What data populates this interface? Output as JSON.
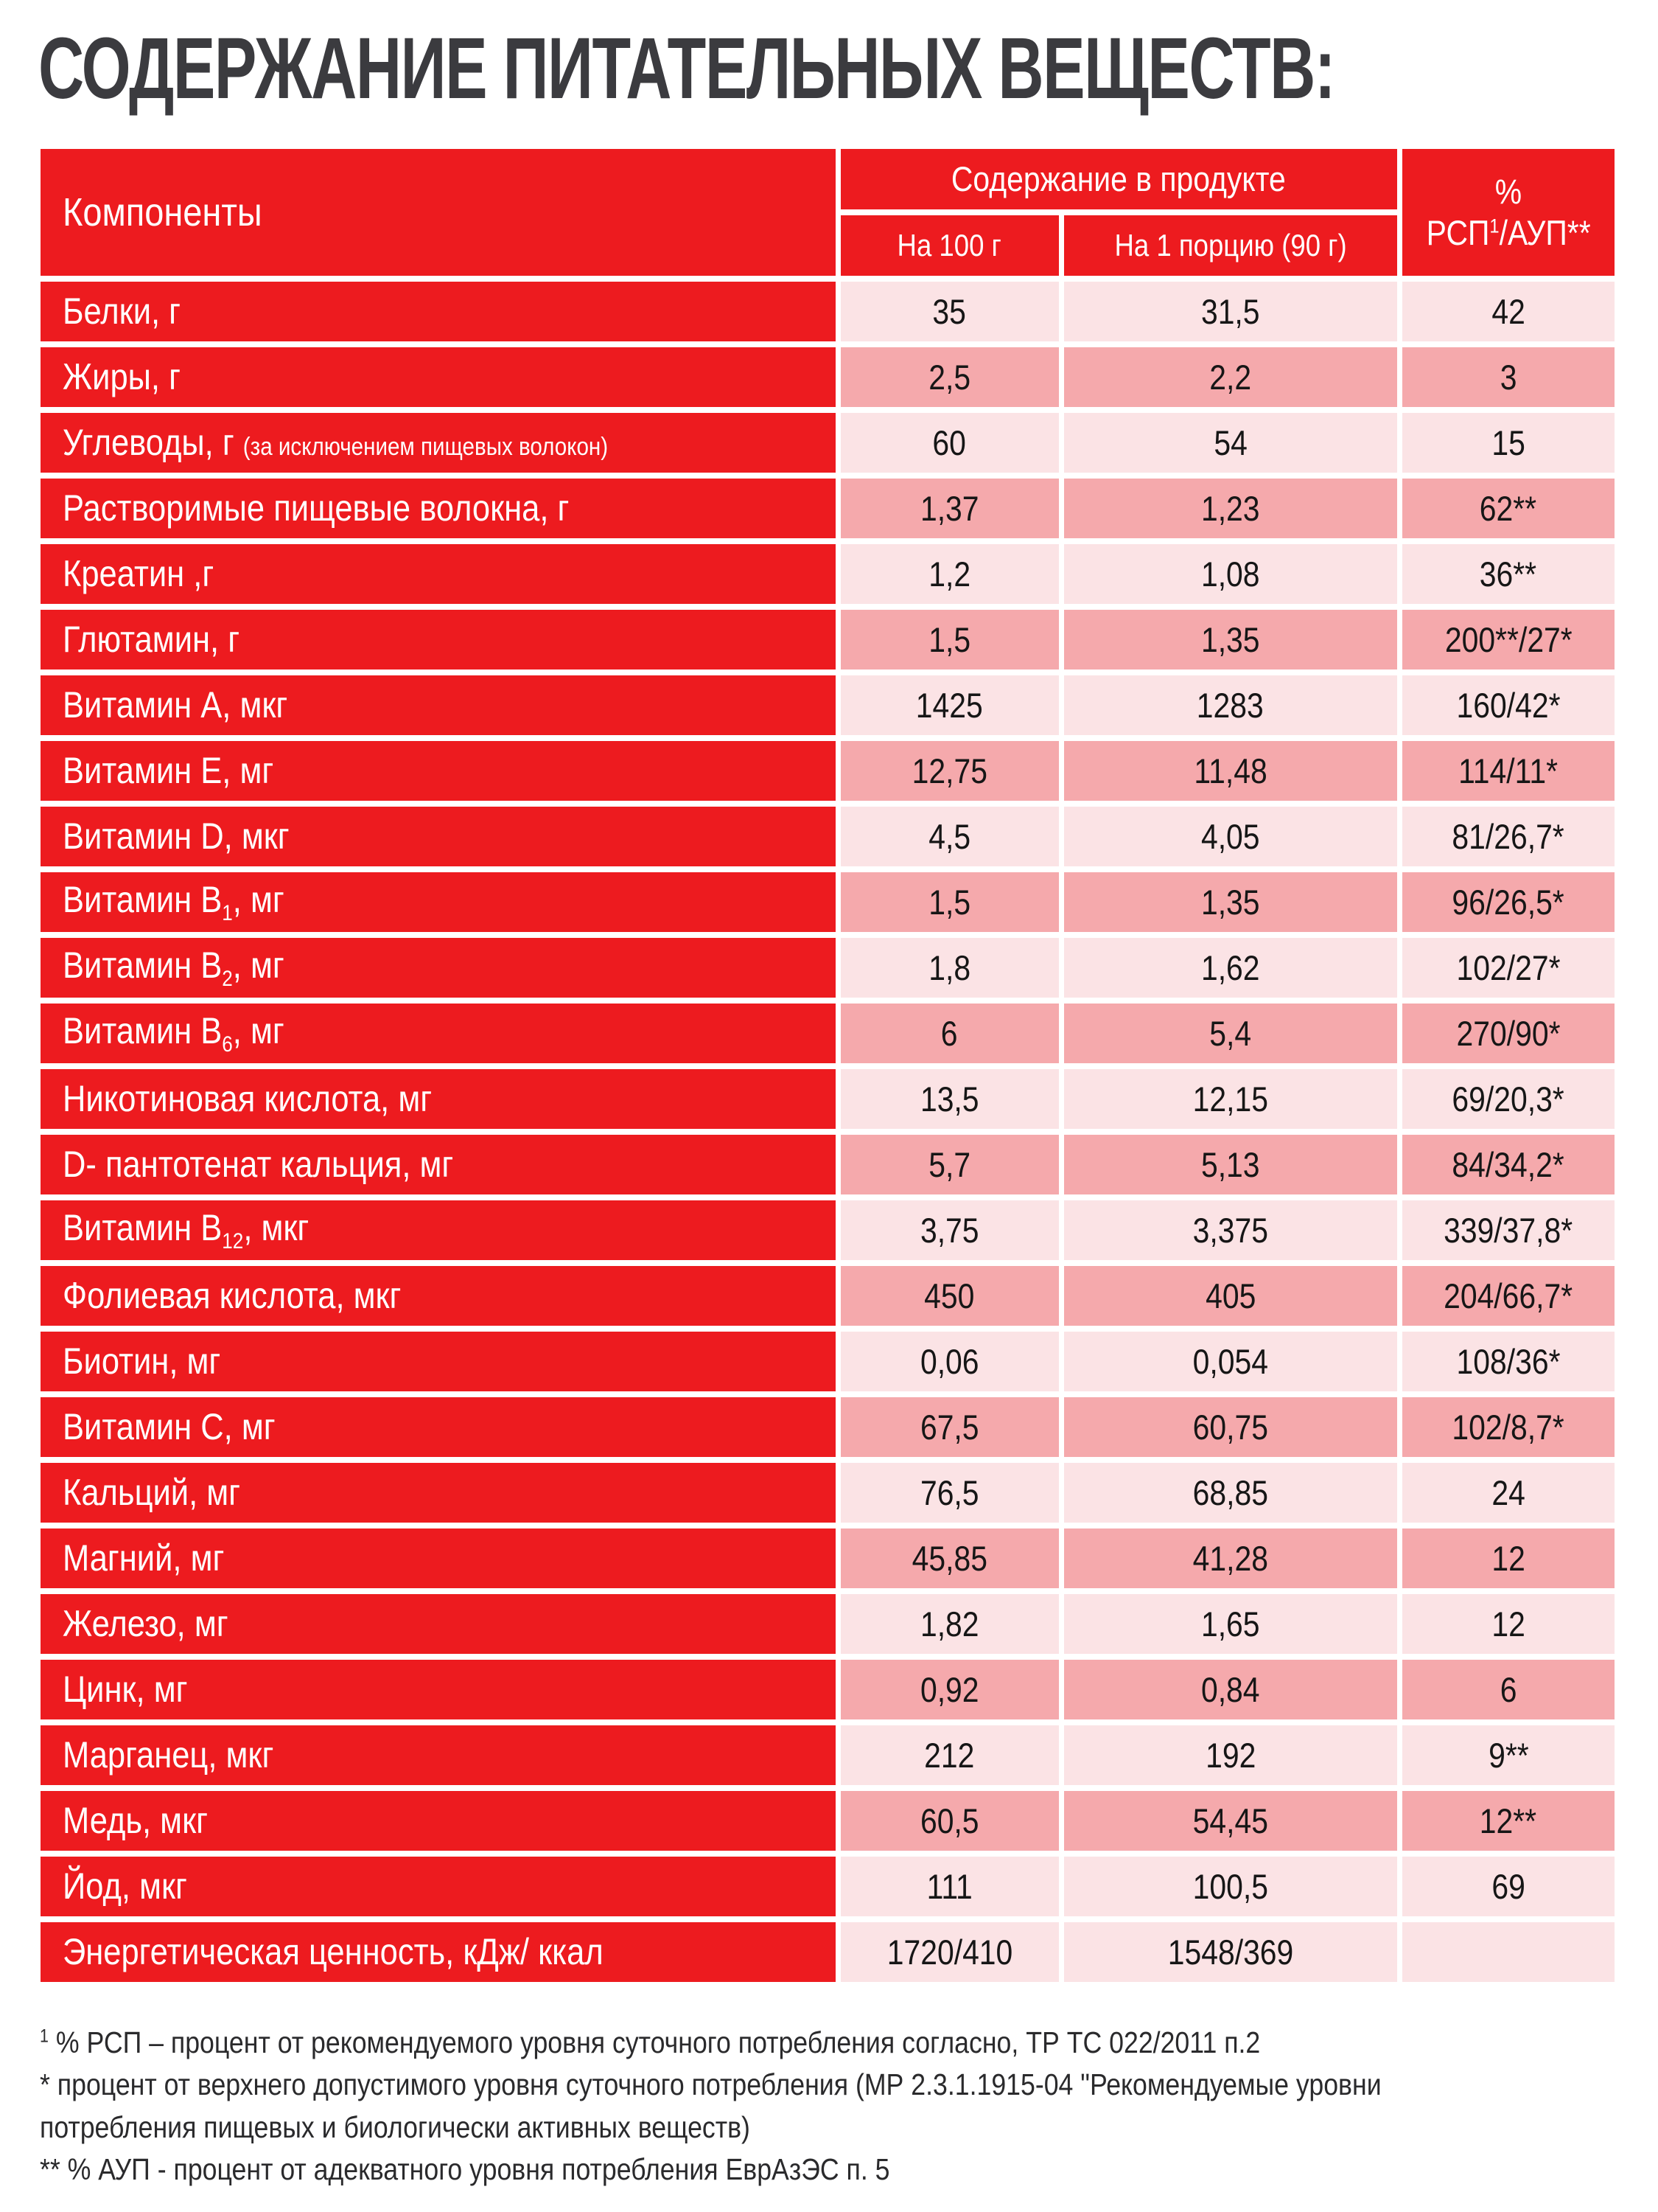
{
  "page": {
    "title": "СОДЕРЖАНИЕ ПИТАТЕЛЬНЫХ ВЕЩЕСТВ:"
  },
  "table": {
    "header": {
      "components": "Компоненты",
      "content_group": "Содержание в продукте",
      "per_100g": "На 100 г",
      "per_portion": "На 1 порцию (90 г)",
      "percent_symbol": "%",
      "percent_rsp": "РСП",
      "percent_sup": "1",
      "percent_aup": "/АУП**"
    },
    "rows": [
      {
        "main": "Белки, г",
        "sub": "",
        "tail": "",
        "note": "",
        "v100": "35",
        "vportion": "31,5",
        "pct": "42",
        "shade": "light"
      },
      {
        "main": "Жиры, г",
        "sub": "",
        "tail": "",
        "note": "",
        "v100": "2,5",
        "vportion": "2,2",
        "pct": "3",
        "shade": "dark"
      },
      {
        "main": "Углеводы, г ",
        "sub": "",
        "tail": "",
        "note": "(за исключением пищевых волокон)",
        "v100": "60",
        "vportion": "54",
        "pct": "15",
        "shade": "light"
      },
      {
        "main": "Растворимые пищевые волокна, г",
        "sub": "",
        "tail": "",
        "note": "",
        "v100": "1,37",
        "vportion": "1,23",
        "pct": "62**",
        "shade": "dark"
      },
      {
        "main": "Креатин ,г",
        "sub": "",
        "tail": "",
        "note": "",
        "v100": "1,2",
        "vportion": "1,08",
        "pct": "36**",
        "shade": "light"
      },
      {
        "main": "Глютамин, г",
        "sub": "",
        "tail": "",
        "note": "",
        "v100": "1,5",
        "vportion": "1,35",
        "pct": "200**/27*",
        "shade": "dark"
      },
      {
        "main": "Витамин А, мкг",
        "sub": "",
        "tail": "",
        "note": "",
        "v100": "1425",
        "vportion": "1283",
        "pct": "160/42*",
        "shade": "light"
      },
      {
        "main": "Витамин Е, мг",
        "sub": "",
        "tail": "",
        "note": "",
        "v100": "12,75",
        "vportion": "11,48",
        "pct": "114/11*",
        "shade": "dark"
      },
      {
        "main": "Витамин D, мкг",
        "sub": "",
        "tail": "",
        "note": "",
        "v100": "4,5",
        "vportion": "4,05",
        "pct": "81/26,7*",
        "shade": "light"
      },
      {
        "main": "Витамин В",
        "sub": "1",
        "tail": ", мг",
        "note": "",
        "v100": "1,5",
        "vportion": "1,35",
        "pct": "96/26,5*",
        "shade": "dark"
      },
      {
        "main": "Витамин В",
        "sub": "2",
        "tail": ", мг",
        "note": "",
        "v100": "1,8",
        "vportion": "1,62",
        "pct": "102/27*",
        "shade": "light"
      },
      {
        "main": "Витамин В",
        "sub": "6",
        "tail": ", мг",
        "note": "",
        "v100": "6",
        "vportion": "5,4",
        "pct": "270/90*",
        "shade": "dark"
      },
      {
        "main": "Никотиновая кислота, мг",
        "sub": "",
        "tail": "",
        "note": "",
        "v100": "13,5",
        "vportion": "12,15",
        "pct": "69/20,3*",
        "shade": "light"
      },
      {
        "main": "D- пантотенат кальция, мг",
        "sub": "",
        "tail": "",
        "note": "",
        "v100": "5,7",
        "vportion": "5,13",
        "pct": "84/34,2*",
        "shade": "dark"
      },
      {
        "main": "Витамин В",
        "sub": "12",
        "tail": ", мкг",
        "note": "",
        "v100": "3,75",
        "vportion": "3,375",
        "pct": "339/37,8*",
        "shade": "light"
      },
      {
        "main": "Фолиевая кислота, мкг",
        "sub": "",
        "tail": "",
        "note": "",
        "v100": "450",
        "vportion": "405",
        "pct": "204/66,7*",
        "shade": "dark"
      },
      {
        "main": "Биотин, мг",
        "sub": "",
        "tail": "",
        "note": "",
        "v100": "0,06",
        "vportion": "0,054",
        "pct": "108/36*",
        "shade": "light"
      },
      {
        "main": "Витамин С, мг",
        "sub": "",
        "tail": "",
        "note": "",
        "v100": "67,5",
        "vportion": "60,75",
        "pct": "102/8,7*",
        "shade": "dark"
      },
      {
        "main": "Кальций, мг",
        "sub": "",
        "tail": "",
        "note": "",
        "v100": "76,5",
        "vportion": "68,85",
        "pct": "24",
        "shade": "light"
      },
      {
        "main": "Магний, мг",
        "sub": "",
        "tail": "",
        "note": "",
        "v100": "45,85",
        "vportion": "41,28",
        "pct": "12",
        "shade": "dark"
      },
      {
        "main": "Железо, мг",
        "sub": "",
        "tail": "",
        "note": "",
        "v100": "1,82",
        "vportion": "1,65",
        "pct": "12",
        "shade": "light"
      },
      {
        "main": "Цинк, мг",
        "sub": "",
        "tail": "",
        "note": "",
        "v100": "0,92",
        "vportion": "0,84",
        "pct": "6",
        "shade": "dark"
      },
      {
        "main": "Марганец, мкг",
        "sub": "",
        "tail": "",
        "note": "",
        "v100": "212",
        "vportion": "192",
        "pct": "9**",
        "shade": "light"
      },
      {
        "main": "Медь, мкг",
        "sub": "",
        "tail": "",
        "note": "",
        "v100": "60,5",
        "vportion": "54,45",
        "pct": "12**",
        "shade": "dark"
      },
      {
        "main": "Йод, мкг",
        "sub": "",
        "tail": "",
        "note": "",
        "v100": "111",
        "vportion": "100,5",
        "pct": "69",
        "shade": "light"
      },
      {
        "main": "Энергетическая ценность, кДж/ ккал",
        "sub": "",
        "tail": "",
        "note": "",
        "v100": "1720/410",
        "vportion": "1548/369",
        "pct": "",
        "shade": "light"
      }
    ]
  },
  "footnotes": [
    {
      "sup": "1",
      "text": "% РСП – процент от рекомендуемого уровня суточного потребления согласно, ТР ТС 022/2011 п.2"
    },
    {
      "sup": "",
      "text": "* процент от верхнего допустимого уровня суточного потребления (МР 2.3.1.1915-04 \"Рекомендуемые уровни"
    },
    {
      "sup": "",
      "text": "потребления пищевых и биологически активных веществ)"
    },
    {
      "sup": "",
      "text": "** % АУП - процент от адекватного уровня потребления ЕврАзЭС п. 5"
    }
  ],
  "colors": {
    "red": "#ED1B1F",
    "row_light": "#FBE3E5",
    "row_dark": "#F5A9AC",
    "title_text": "#3B3B3F",
    "value_text": "#161616"
  }
}
